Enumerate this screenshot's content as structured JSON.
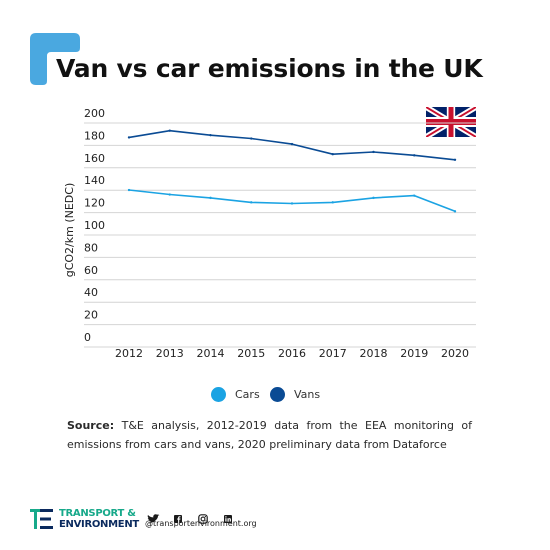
{
  "header": {
    "title": "Van vs car emissions in the UK"
  },
  "chart_data": {
    "type": "line",
    "title": "Van vs car emissions in the UK",
    "xlabel": "",
    "ylabel": "gCO2/km (NEDC)",
    "x": [
      "2012",
      "2013",
      "2014",
      "2015",
      "2016",
      "2017",
      "2018",
      "2019",
      "2020"
    ],
    "ylim": [
      0,
      200
    ],
    "yticks": [
      0,
      20,
      40,
      60,
      80,
      100,
      120,
      140,
      160,
      180,
      200
    ],
    "grid": true,
    "legend_position": "bottom",
    "series": [
      {
        "name": "Cars",
        "color": "#1ba3e3",
        "values": [
          133,
          129,
          126,
          122,
          121,
          122,
          126,
          128,
          114
        ]
      },
      {
        "name": "Vans",
        "color": "#0a4b94",
        "values": [
          180,
          186,
          182,
          179,
          174,
          165,
          167,
          164,
          160
        ]
      }
    ]
  },
  "source": {
    "label": "Source:",
    "text": "T&E analysis, 2012-2019 data from the EEA monitoring of emissions from cars and vans, 2020 preliminary data from Dataforce"
  },
  "footer": {
    "org_line1": "TRANSPORT &",
    "org_line2": "ENVIRONMENT",
    "handle": "@transportenvironment.org",
    "icons": [
      "twitter-icon",
      "facebook-icon",
      "instagram-icon",
      "linkedin-icon"
    ]
  },
  "colors": {
    "accent": "#4aa8e0",
    "brand_navy": "#0a2a5e",
    "brand_green": "#17a98a"
  },
  "flag_icon": "union-jack-flag-icon"
}
